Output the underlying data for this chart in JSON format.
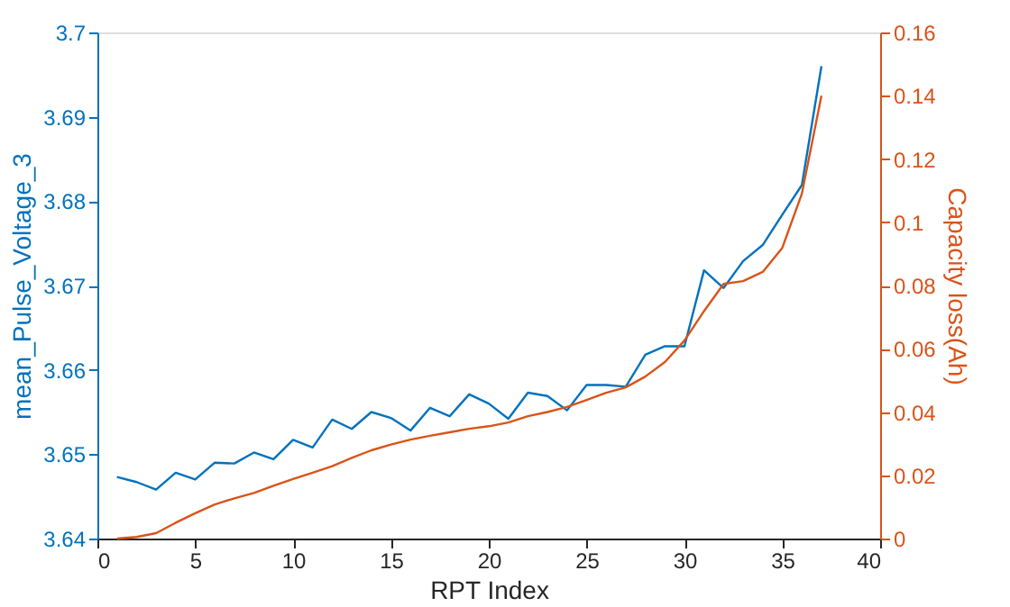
{
  "chart_data": {
    "type": "line",
    "xlabel": "RPT Index",
    "ylabel": "mean_Pulse_Voltage_3",
    "y2label": "Capacity loss(Ah)",
    "x": [
      1,
      2,
      3,
      4,
      5,
      6,
      7,
      8,
      9,
      10,
      11,
      12,
      13,
      14,
      15,
      16,
      17,
      18,
      19,
      20,
      21,
      22,
      23,
      24,
      25,
      26,
      27,
      28,
      29,
      30,
      31,
      32,
      33,
      34,
      35,
      36,
      37
    ],
    "series": [
      {
        "color": "#0072bd",
        "values": [
          3.6473,
          3.6467,
          3.6458,
          3.6478,
          3.647,
          3.649,
          3.6489,
          3.6502,
          3.6494,
          3.6517,
          3.6508,
          3.6541,
          3.653,
          3.655,
          3.6543,
          3.6528,
          3.6555,
          3.6545,
          3.6571,
          3.656,
          3.6542,
          3.6573,
          3.6569,
          3.6552,
          3.6582,
          3.6582,
          3.658,
          3.6618,
          3.6628,
          3.6628,
          3.6718,
          3.6697,
          3.6729,
          3.6748,
          3.6784,
          3.6819,
          3.696
        ]
      },
      {
        "color": "#d95319",
        "axis": "y2",
        "values": [
          0.0,
          0.0005,
          0.0017,
          0.005,
          0.008,
          0.0108,
          0.0127,
          0.0144,
          0.0167,
          0.0188,
          0.0208,
          0.0229,
          0.0255,
          0.0279,
          0.0297,
          0.0313,
          0.0325,
          0.0336,
          0.0347,
          0.0355,
          0.0367,
          0.0387,
          0.04,
          0.0416,
          0.0438,
          0.0461,
          0.0478,
          0.0512,
          0.0558,
          0.0626,
          0.0719,
          0.0805,
          0.0814,
          0.0843,
          0.0919,
          0.109,
          0.14
        ]
      }
    ],
    "xlim": [
      0,
      40
    ],
    "xticks": [
      0,
      5,
      10,
      15,
      20,
      25,
      30,
      35,
      40
    ],
    "ylim": [
      3.64,
      3.7
    ],
    "yticks": [
      3.64,
      3.65,
      3.66,
      3.67,
      3.68,
      3.69,
      3.7
    ],
    "y2lim": [
      0,
      0.16
    ],
    "y2ticks": [
      0,
      0.02,
      0.04,
      0.06,
      0.08,
      0.1,
      0.12,
      0.14,
      0.16
    ],
    "grid": false
  }
}
